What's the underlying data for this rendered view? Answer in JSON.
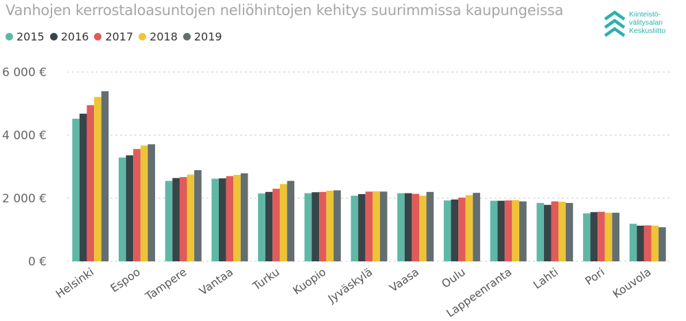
{
  "title": "Vanhojen kerrostaloasuntojen neliöhintojen kehitys suurimmissa kaupungeissa",
  "logo": {
    "icon": "chevrons-up-icon",
    "color": "#2bb2ad",
    "lines": [
      "Kiinteistö-",
      "välitysalan",
      "Keskusliitto"
    ]
  },
  "chart_data": {
    "type": "bar",
    "title": "Vanhojen kerrostaloasuntojen neliöhintojen kehitys suurimmissa kaupungeissa",
    "xlabel": "",
    "ylabel": "",
    "ylim": [
      0,
      6000
    ],
    "yticks": [
      0,
      2000,
      4000,
      6000
    ],
    "ytick_labels": [
      "0 €",
      "2 000 €",
      "4 000 €",
      "6 000 €"
    ],
    "grid": true,
    "legend_position": "top-left",
    "categories": [
      "Helsinki",
      "Espoo",
      "Tampere",
      "Vantaa",
      "Turku",
      "Kuopio",
      "Jyväskylä",
      "Vaasa",
      "Oulu",
      "Lappeenranta",
      "Lahti",
      "Pori",
      "Kouvola"
    ],
    "series": [
      {
        "name": "2015",
        "color": "#5fb8a6",
        "values": [
          4520,
          3290,
          2550,
          2620,
          2150,
          2160,
          2080,
          2160,
          1930,
          1920,
          1850,
          1520,
          1190
        ]
      },
      {
        "name": "2016",
        "color": "#374549",
        "values": [
          4680,
          3360,
          2640,
          2630,
          2200,
          2190,
          2130,
          2160,
          1960,
          1920,
          1790,
          1560,
          1130
        ]
      },
      {
        "name": "2017",
        "color": "#e15b5b",
        "values": [
          4950,
          3560,
          2670,
          2700,
          2300,
          2200,
          2210,
          2140,
          2020,
          1930,
          1900,
          1570,
          1140
        ]
      },
      {
        "name": "2018",
        "color": "#eec437",
        "values": [
          5210,
          3670,
          2750,
          2740,
          2450,
          2240,
          2220,
          2080,
          2100,
          1940,
          1890,
          1540,
          1130
        ]
      },
      {
        "name": "2019",
        "color": "#636e70",
        "values": [
          5390,
          3710,
          2890,
          2790,
          2550,
          2250,
          2210,
          2200,
          2170,
          1900,
          1850,
          1540,
          1080
        ]
      }
    ]
  }
}
